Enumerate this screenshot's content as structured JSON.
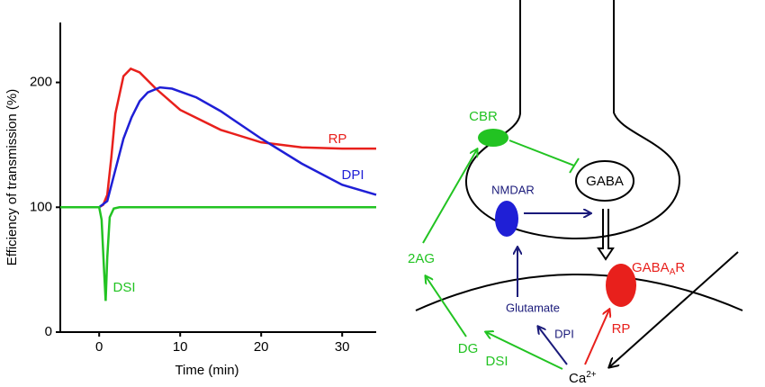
{
  "chart_data": {
    "type": "line",
    "xlabel": "Time (min)",
    "ylabel": "Efficiency of transmission (%)",
    "xlim": [
      -4.8,
      34.2
    ],
    "ylim": [
      0,
      248
    ],
    "xticks": [
      0,
      10,
      20,
      30
    ],
    "yticks": [
      0,
      100,
      200
    ],
    "series": [
      {
        "name": "RP",
        "color": "#e8201c",
        "x": [
          -4.8,
          0,
          0.5,
          1,
          1.5,
          2,
          3,
          3.9,
          5,
          7,
          10,
          15,
          20,
          25,
          30,
          34.2
        ],
        "values": [
          100,
          100,
          102,
          110,
          140,
          175,
          205,
          211,
          208,
          195,
          178,
          162,
          152,
          148,
          147,
          147
        ]
      },
      {
        "name": "DPI",
        "color": "#1f1fd6",
        "x": [
          -4.8,
          0,
          1,
          2,
          3,
          4,
          5,
          6,
          7.5,
          9,
          12,
          15,
          20,
          25,
          30,
          34.2
        ],
        "values": [
          100,
          100,
          105,
          130,
          155,
          172,
          185,
          192,
          196,
          195,
          188,
          177,
          155,
          135,
          118,
          110
        ]
      },
      {
        "name": "DSI",
        "color": "#22c322",
        "x": [
          -4.8,
          0,
          0.3,
          0.6,
          0.8,
          1.0,
          1.3,
          1.8,
          2.5,
          34.2
        ],
        "values": [
          100,
          100,
          90,
          50,
          25,
          60,
          92,
          99,
          100,
          100
        ]
      }
    ]
  },
  "diagram": {
    "cbr": "CBR",
    "gaba": "GABA",
    "nmdar": "NMDAR",
    "gabaa_receptor": {
      "main": "GABA",
      "sub": "A",
      "suffix": "R"
    },
    "two_ag": "2AG",
    "glutamate": "Glutamate",
    "dg": "DG",
    "dpi": "DPI",
    "rp": "RP",
    "dsi": "DSI",
    "calcium": {
      "main": "Ca",
      "sup": "2+"
    }
  }
}
